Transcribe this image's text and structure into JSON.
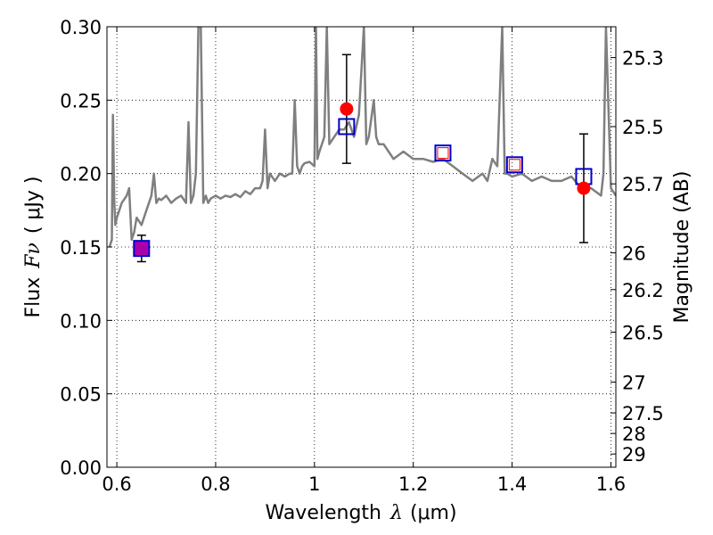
{
  "chart_data": {
    "type": "line",
    "xlabel": "Wavelength",
    "xlabel_symbol": "λ",
    "xlabel_unit": "(μm)",
    "ylabel": "Flux",
    "ylabel_symbol": "Fν",
    "ylabel_unit": "( μJy )",
    "y2label": "Magnitude (AB)",
    "xlim": [
      0.58,
      1.61
    ],
    "ylim": [
      0.0,
      0.3
    ],
    "xticks": [
      0.6,
      0.8,
      1.0,
      1.2,
      1.4,
      1.6
    ],
    "xtick_labels": [
      "0.6",
      "0.8",
      "1",
      "1.2",
      "1.4",
      "1.6"
    ],
    "yticks": [
      0.0,
      0.05,
      0.1,
      0.15,
      0.2,
      0.25,
      0.3
    ],
    "ytick_labels": [
      "0.00",
      "0.05",
      "0.10",
      "0.15",
      "0.20",
      "0.25",
      "0.30"
    ],
    "y2ticks": [
      {
        "label": "25.3",
        "flux": 0.279
      },
      {
        "label": "25.5",
        "flux": 0.232
      },
      {
        "label": "25.7",
        "flux": 0.193
      },
      {
        "label": "26",
        "flux": 0.146
      },
      {
        "label": "26.2",
        "flux": 0.121
      },
      {
        "label": "26.5",
        "flux": 0.092
      },
      {
        "label": "27",
        "flux": 0.058
      },
      {
        "label": "27.5",
        "flux": 0.037
      },
      {
        "label": "28",
        "flux": 0.023
      },
      {
        "label": "29",
        "flux": 0.009
      }
    ],
    "grid": true,
    "colors": {
      "spectrum": "#7f7f7f",
      "observed": "#ff0000",
      "model_box": "#0000cc",
      "overlap_fill": "#aa00aa"
    },
    "series": [
      {
        "kind": "spectrum",
        "x": [
          0.585,
          0.59,
          0.592,
          0.595,
          0.597,
          0.6,
          0.605,
          0.61,
          0.62,
          0.625,
          0.63,
          0.635,
          0.64,
          0.65,
          0.66,
          0.67,
          0.675,
          0.68,
          0.685,
          0.69,
          0.7,
          0.71,
          0.72,
          0.73,
          0.74,
          0.745,
          0.75,
          0.755,
          0.76,
          0.765,
          0.77,
          0.775,
          0.78,
          0.785,
          0.79,
          0.8,
          0.81,
          0.82,
          0.83,
          0.84,
          0.85,
          0.86,
          0.87,
          0.88,
          0.89,
          0.895,
          0.9,
          0.905,
          0.91,
          0.92,
          0.93,
          0.94,
          0.95,
          0.955,
          0.96,
          0.965,
          0.97,
          0.975,
          0.98,
          0.99,
          1.0,
          1.003,
          1.006,
          1.01,
          1.02,
          1.025,
          1.03,
          1.04,
          1.05,
          1.06,
          1.07,
          1.08,
          1.09,
          1.1,
          1.105,
          1.11,
          1.12,
          1.125,
          1.13,
          1.14,
          1.15,
          1.16,
          1.18,
          1.2,
          1.22,
          1.24,
          1.26,
          1.28,
          1.3,
          1.32,
          1.34,
          1.35,
          1.36,
          1.37,
          1.38,
          1.385,
          1.39,
          1.4,
          1.42,
          1.44,
          1.46,
          1.48,
          1.5,
          1.52,
          1.54,
          1.56,
          1.58,
          1.585,
          1.59,
          1.6,
          1.61
        ],
        "y": [
          0.15,
          0.155,
          0.24,
          0.18,
          0.165,
          0.17,
          0.175,
          0.18,
          0.185,
          0.19,
          0.155,
          0.16,
          0.17,
          0.165,
          0.175,
          0.185,
          0.2,
          0.18,
          0.183,
          0.182,
          0.185,
          0.18,
          0.183,
          0.185,
          0.18,
          0.235,
          0.18,
          0.185,
          0.2,
          0.3,
          0.3,
          0.18,
          0.185,
          0.18,
          0.183,
          0.185,
          0.183,
          0.185,
          0.184,
          0.186,
          0.184,
          0.188,
          0.186,
          0.19,
          0.19,
          0.195,
          0.23,
          0.19,
          0.2,
          0.195,
          0.2,
          0.198,
          0.2,
          0.2,
          0.25,
          0.205,
          0.2,
          0.205,
          0.207,
          0.208,
          0.205,
          0.3,
          0.21,
          0.215,
          0.225,
          0.3,
          0.22,
          0.225,
          0.23,
          0.23,
          0.235,
          0.225,
          0.24,
          0.3,
          0.22,
          0.225,
          0.25,
          0.225,
          0.22,
          0.22,
          0.215,
          0.21,
          0.215,
          0.21,
          0.21,
          0.208,
          0.21,
          0.205,
          0.2,
          0.195,
          0.2,
          0.195,
          0.21,
          0.205,
          0.3,
          0.2,
          0.2,
          0.198,
          0.2,
          0.195,
          0.198,
          0.195,
          0.195,
          0.198,
          0.19,
          0.19,
          0.185,
          0.2,
          0.3,
          0.19,
          0.185
        ]
      },
      {
        "kind": "observed",
        "points": [
          {
            "x": 0.65,
            "y": 0.149,
            "err": 0.009
          },
          {
            "x": 1.065,
            "y": 0.244,
            "err": 0.037
          },
          {
            "x": 1.545,
            "y": 0.19,
            "err": 0.037
          }
        ]
      },
      {
        "kind": "model",
        "points": [
          {
            "x": 0.65,
            "y": 0.149
          },
          {
            "x": 1.065,
            "y": 0.232
          },
          {
            "x": 1.26,
            "y": 0.214
          },
          {
            "x": 1.405,
            "y": 0.206
          },
          {
            "x": 1.545,
            "y": 0.198
          }
        ]
      },
      {
        "kind": "model-inner",
        "points": [
          {
            "x": 1.26,
            "y": 0.214
          },
          {
            "x": 1.405,
            "y": 0.206
          }
        ]
      }
    ]
  }
}
